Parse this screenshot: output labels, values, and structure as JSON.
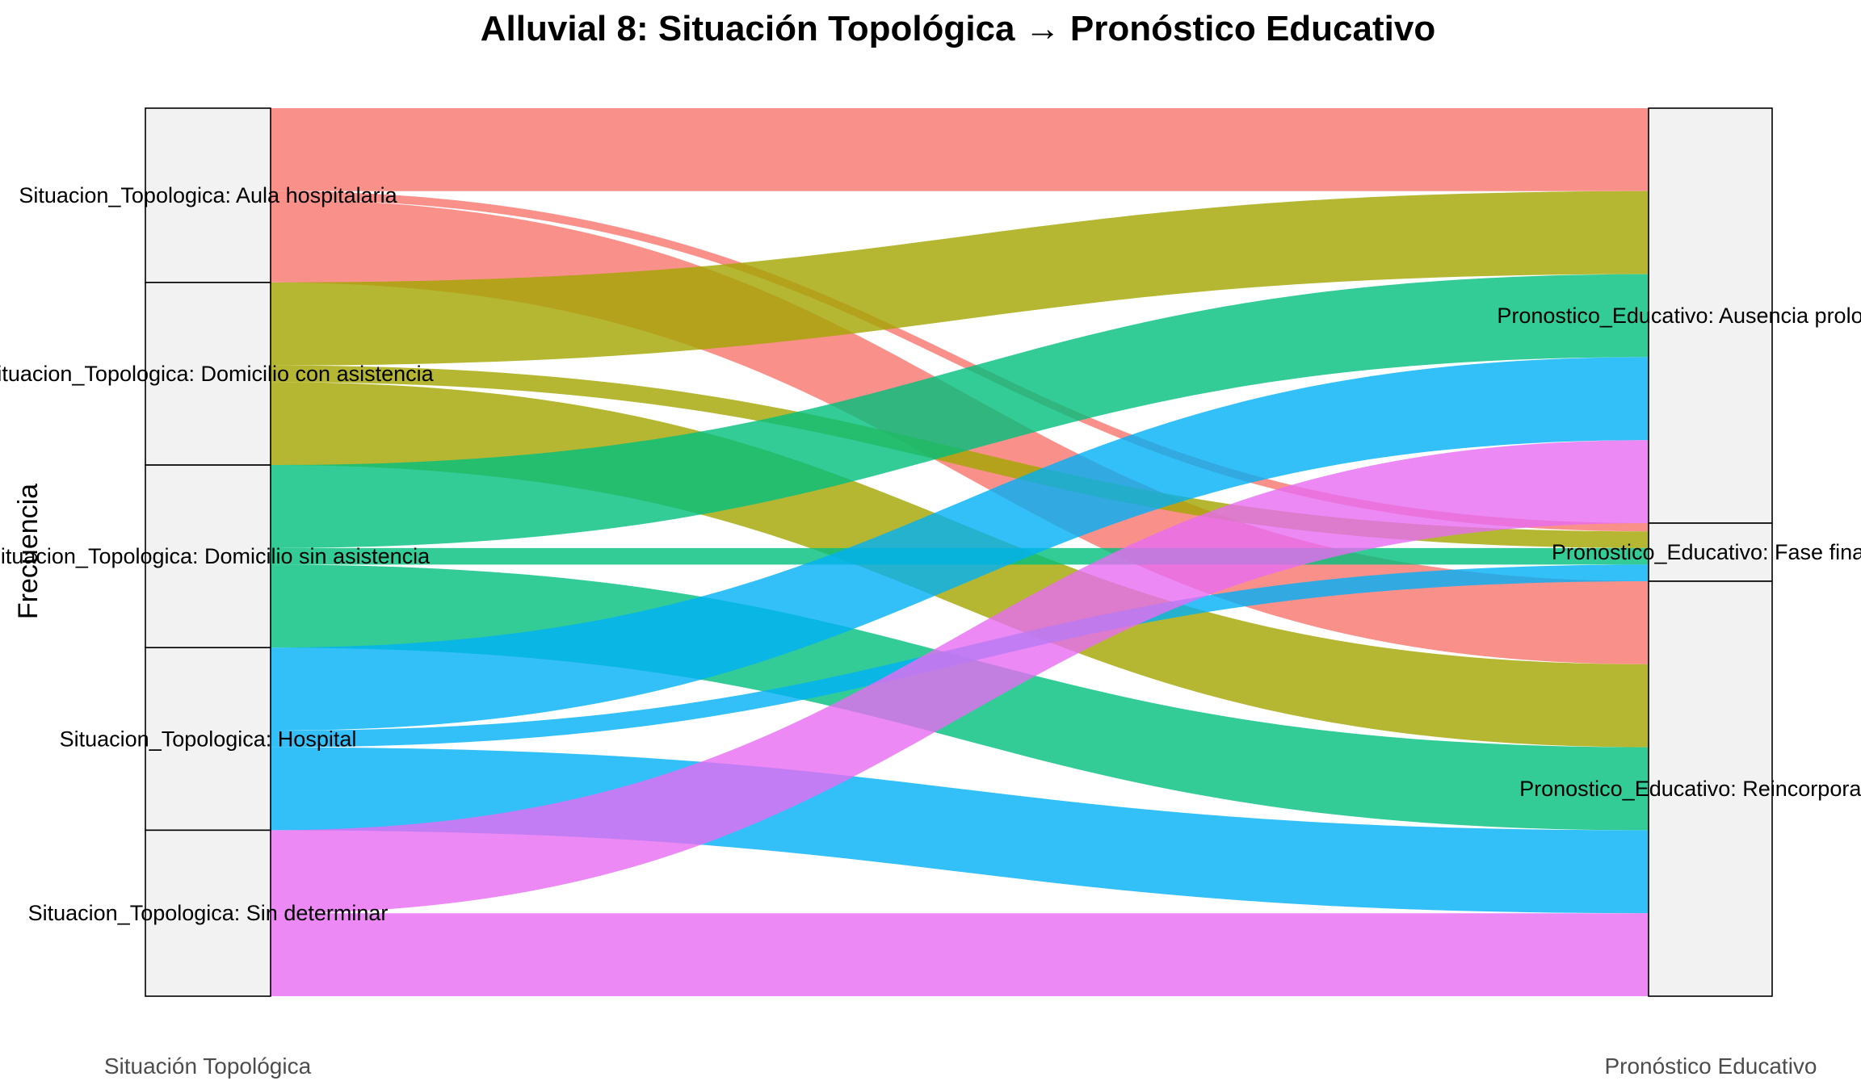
{
  "chart_data": {
    "type": "alluvial",
    "title": "Alluvial 8: Situación Topológica → Pronóstico Educativo",
    "ylabel": "Frecuencia",
    "axes": [
      "Situación Topológica",
      "Pronóstico Educativo"
    ],
    "left_strata": [
      {
        "key": "aula",
        "label": "Situacion_Topologica: Aula hospitalaria"
      },
      {
        "key": "dca",
        "label": "Situacion_Topologica: Domicilio con asistencia"
      },
      {
        "key": "dsa",
        "label": "Situacion_Topologica: Domicilio sin asistencia"
      },
      {
        "key": "hosp",
        "label": "Situacion_Topologica: Hospital"
      },
      {
        "key": "sind",
        "label": "Situacion_Topologica: Sin determinar"
      }
    ],
    "right_strata": [
      {
        "key": "aus",
        "label": "Pronostico_Educativo: Ausencia prolongada"
      },
      {
        "key": "fase",
        "label": "Pronostico_Educativo: Fase final"
      },
      {
        "key": "reinc",
        "label": "Pronostico_Educativo: Reincorporación"
      }
    ],
    "colors": {
      "aula": "#F8766D",
      "dca": "#A3A500",
      "dsa": "#00BF7D",
      "hosp": "#00B0F6",
      "sind": "#E76BF3"
    },
    "flows": [
      {
        "from": "aula",
        "to": "aus",
        "value": 10
      },
      {
        "from": "aula",
        "to": "fase",
        "value": 1
      },
      {
        "from": "aula",
        "to": "reinc",
        "value": 10
      },
      {
        "from": "dca",
        "to": "aus",
        "value": 10
      },
      {
        "from": "dca",
        "to": "fase",
        "value": 2
      },
      {
        "from": "dca",
        "to": "reinc",
        "value": 10
      },
      {
        "from": "dsa",
        "to": "aus",
        "value": 10
      },
      {
        "from": "dsa",
        "to": "fase",
        "value": 2
      },
      {
        "from": "dsa",
        "to": "reinc",
        "value": 10
      },
      {
        "from": "hosp",
        "to": "aus",
        "value": 10
      },
      {
        "from": "hosp",
        "to": "fase",
        "value": 2
      },
      {
        "from": "hosp",
        "to": "reinc",
        "value": 10
      },
      {
        "from": "sind",
        "to": "aus",
        "value": 10
      },
      {
        "from": "sind",
        "to": "fase",
        "value": 0
      },
      {
        "from": "sind",
        "to": "reinc",
        "value": 10
      }
    ]
  }
}
